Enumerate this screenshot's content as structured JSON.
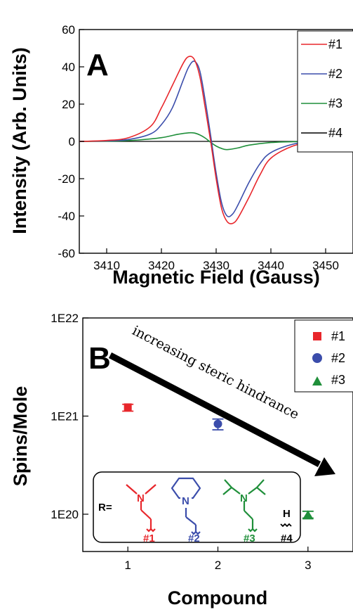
{
  "chart_data": [
    {
      "panel_label": "A",
      "type": "line",
      "xlabel": "Magnetic Field (Gauss)",
      "ylabel": "Intensity (Arb. Units)",
      "xlim": [
        3405,
        3455
      ],
      "ylim": [
        -60,
        60
      ],
      "xticks": [
        3410,
        3420,
        3430,
        3440,
        3450
      ],
      "yticks": [
        60,
        40,
        20,
        0,
        -20,
        -40,
        -60
      ],
      "legend_position": "top-right",
      "series": [
        {
          "name": "#1",
          "color": "#e8262b",
          "x": [
            3405,
            3410,
            3414,
            3418,
            3420,
            3422,
            3424,
            3425,
            3426,
            3427,
            3428,
            3429,
            3430,
            3431,
            3432,
            3433,
            3434,
            3436,
            3438,
            3440,
            3444,
            3448,
            3455
          ],
          "y": [
            0,
            0.5,
            2,
            8,
            18,
            30,
            42,
            45.5,
            44,
            35,
            18,
            0,
            -20,
            -36,
            -43,
            -44,
            -41,
            -30,
            -18,
            -9,
            -2.5,
            -0.5,
            0
          ]
        },
        {
          "name": "#2",
          "color": "#3b4dab",
          "x": [
            3405,
            3410,
            3414,
            3418,
            3420,
            3422,
            3424,
            3425,
            3426,
            3427,
            3428,
            3429,
            3430,
            3431,
            3432,
            3433,
            3434,
            3436,
            3438,
            3440,
            3444,
            3448,
            3455
          ],
          "y": [
            0,
            0.3,
            1,
            4,
            9,
            18,
            33,
            40,
            43,
            38,
            22,
            3,
            -17,
            -33,
            -40,
            -39,
            -34,
            -22,
            -12,
            -6,
            -1.5,
            -0.3,
            0
          ]
        },
        {
          "name": "#3",
          "color": "#1f8f3a",
          "x": [
            3405,
            3412,
            3416,
            3420,
            3423,
            3425,
            3426,
            3427,
            3428,
            3429,
            3430,
            3431,
            3432,
            3434,
            3436,
            3440,
            3445,
            3455
          ],
          "y": [
            0,
            0.2,
            0.8,
            2,
            3.8,
            4.6,
            4.5,
            3.5,
            1.8,
            -0.5,
            -2.5,
            -3.8,
            -4.4,
            -3.5,
            -2,
            -0.6,
            -0.1,
            0
          ]
        },
        {
          "name": "#4",
          "color": "#000000",
          "x": [
            3405,
            3455
          ],
          "y": [
            0,
            0
          ]
        }
      ]
    },
    {
      "panel_label": "B",
      "type": "scatter",
      "xlabel": "Compound",
      "ylabel": "Spins/Mole",
      "xlim": [
        0.5,
        3.5
      ],
      "ylim_log10": [
        19.62,
        22
      ],
      "yscale": "log",
      "xticks": [
        1,
        2,
        3
      ],
      "yticks": [
        "1E20",
        "1E21",
        "1E22"
      ],
      "legend_position": "top-right",
      "annotation": "increasing steric hindrance",
      "points": [
        {
          "series": "#1",
          "x": 1,
          "y_log10": 21.09,
          "err_low": 21.05,
          "err_high": 21.12,
          "marker": "square",
          "color": "#e8262b"
        },
        {
          "series": "#2",
          "x": 2,
          "y_log10": 20.92,
          "err_low": 20.86,
          "err_high": 20.97,
          "marker": "circle",
          "color": "#3b4dab"
        },
        {
          "series": "#3",
          "x": 3,
          "y_log10": 19.99,
          "err_low": 19.96,
          "err_high": 20.03,
          "marker": "triangle",
          "color": "#1f8f3a"
        }
      ],
      "legend": [
        {
          "label": "#1",
          "marker": "square",
          "color": "#e8262b"
        },
        {
          "label": "#2",
          "marker": "circle",
          "color": "#3b4dab"
        },
        {
          "label": "#3",
          "marker": "triangle",
          "color": "#1f8f3a"
        }
      ],
      "inset": {
        "prefix": "R=",
        "compounds": [
          {
            "label": "#1",
            "color": "#e8262b",
            "atom": "N"
          },
          {
            "label": "#2",
            "color": "#3b4dab",
            "atom": "N"
          },
          {
            "label": "#3",
            "color": "#1f8f3a",
            "atom": "N"
          },
          {
            "label": "#4",
            "color": "#000000",
            "atom": "H"
          }
        ]
      }
    }
  ]
}
